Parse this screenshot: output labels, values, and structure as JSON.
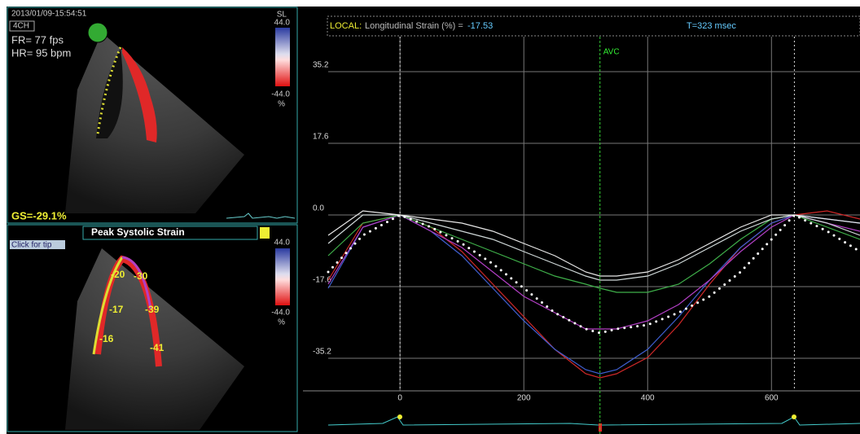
{
  "left_panel": {
    "timestamp": "2013/01/09-15:54:51",
    "view": "4CH",
    "frame_rate": "FR= 77 fps",
    "heart_rate": "HR= 95 bpm",
    "scale_top": {
      "mode": "SL",
      "max": "44.0",
      "min": "-44.0",
      "unit": "%"
    },
    "global_strain": "GS=-29.1%",
    "dropdown": "Peak Systolic Strain",
    "tip_button": "Click for tip",
    "scale_bottom": {
      "max": "44.0",
      "min": "-44.0",
      "unit": "%"
    },
    "segments": [
      "-20",
      "-30",
      "-17",
      "-39",
      "-16",
      "-41"
    ]
  },
  "chart_data": {
    "type": "line",
    "header": {
      "prefix": "LOCAL:",
      "label": "Longitudinal Strain (%) =",
      "value": "-17.53",
      "time": "T=323 msec"
    },
    "avc": {
      "label": "AVC",
      "x": 323
    },
    "event_lines": [
      0,
      637
    ],
    "x": [
      -116,
      -60,
      0,
      50,
      100,
      150,
      200,
      250,
      300,
      323,
      350,
      400,
      450,
      500,
      550,
      600,
      637,
      690,
      743
    ],
    "series": [
      {
        "color": "#ffffff",
        "dotted": true,
        "values": [
          -14,
          -5,
          0,
          -3,
          -7,
          -12,
          -18,
          -24,
          -28,
          -29,
          -28,
          -27,
          -24,
          -20,
          -14,
          -6,
          0,
          -4,
          -9
        ]
      },
      {
        "color": "#e8e8e8",
        "values": [
          -5,
          1,
          0,
          -1,
          -2,
          -4,
          -7,
          -10,
          -14,
          -15,
          -15,
          -14,
          -11,
          -7,
          -3,
          0,
          0,
          -1,
          -2
        ]
      },
      {
        "color": "#cfd8d8",
        "values": [
          -7,
          0,
          0,
          -2,
          -4,
          -6,
          -9,
          -12,
          -15,
          -16,
          -16,
          -15,
          -12,
          -8,
          -4,
          -1,
          0,
          -2,
          -5
        ]
      },
      {
        "color": "#3fb04a",
        "values": [
          -10,
          -2,
          0,
          -3,
          -6,
          -9,
          -12,
          -15,
          -17,
          -18,
          -19,
          -19,
          -17,
          -12,
          -6,
          -1,
          0,
          -3,
          -6
        ]
      },
      {
        "color": "#b23fc4",
        "values": [
          -17,
          -3,
          0,
          -4,
          -8,
          -14,
          -20,
          -24,
          -28,
          -28,
          -28,
          -26,
          -22,
          -16,
          -9,
          -3,
          0,
          -2,
          -4
        ]
      },
      {
        "color": "#3f5fd0",
        "values": [
          -18,
          -3,
          0,
          -4,
          -10,
          -18,
          -26,
          -33,
          -38,
          -39,
          -38,
          -33,
          -25,
          -16,
          -8,
          -2,
          0,
          -1,
          -2
        ]
      },
      {
        "color": "#d02828",
        "values": [
          -16,
          -2,
          0,
          -3,
          -9,
          -17,
          -25,
          -33,
          -39,
          -40,
          -39,
          -35,
          -27,
          -17,
          -8,
          -2,
          0,
          1,
          -1
        ]
      }
    ],
    "xlim": [
      -116,
      743
    ],
    "ylim": [
      -43.2,
      43.8
    ],
    "xticks": [
      0,
      200,
      400,
      600
    ],
    "yticks": [
      35.2,
      17.6,
      {
        "value": 0,
        "label": "0.0"
      },
      -17.6,
      -35.2
    ],
    "grid": true
  }
}
